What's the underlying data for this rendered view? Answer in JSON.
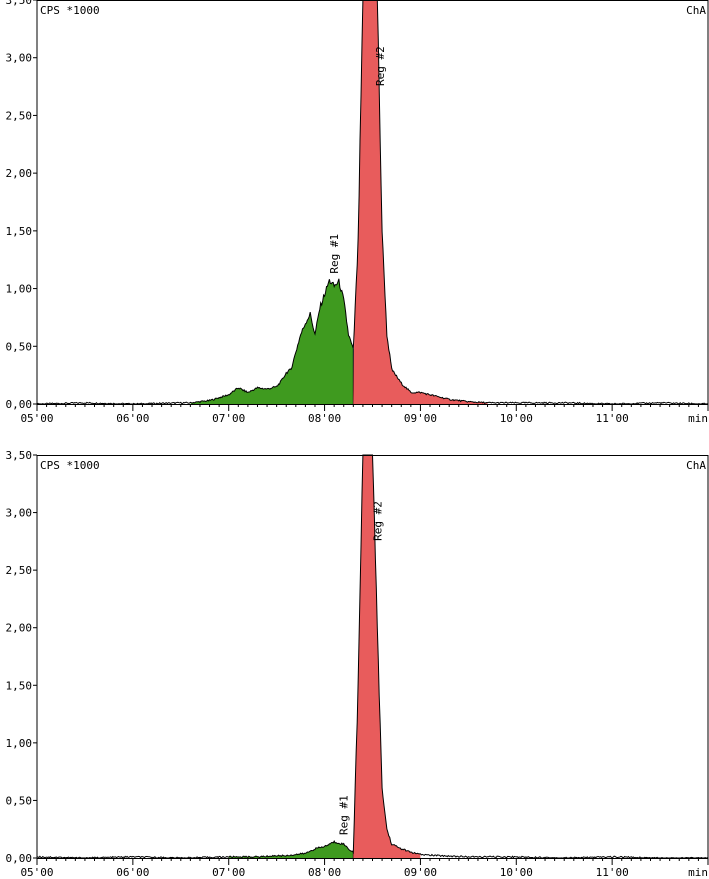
{
  "chart_data": [
    {
      "type": "area",
      "ylabel_corner": "CPS *1000",
      "channel_label": "ChA",
      "x_unit_label": "min",
      "x_range": [
        5.0,
        12.0
      ],
      "y_range": [
        0.0,
        3.5
      ],
      "x_tick_labels": [
        "05'00",
        "06'00",
        "07'00",
        "08'00",
        "09'00",
        "10'00",
        "11'00"
      ],
      "y_tick_labels": [
        "0,00",
        "0,50",
        "1,00",
        "1,50",
        "2,00",
        "2,50",
        "3,00",
        "3,50"
      ],
      "regions": [
        {
          "name": "Reg #1",
          "color": "#3f9a1f",
          "x_start": 6.6,
          "x_end": 8.3
        },
        {
          "name": "Reg #2",
          "color": "#e85c5c",
          "x_start": 8.3,
          "x_end": 9.7
        }
      ],
      "peak_labels": [
        {
          "text": "Reg #1",
          "x": 8.1,
          "y": 1.13
        },
        {
          "text": "Reg #2",
          "x": 8.58,
          "y": 3.1
        }
      ],
      "trace": [
        [
          5.0,
          0.0
        ],
        [
          5.5,
          0.01
        ],
        [
          6.0,
          0.0
        ],
        [
          6.5,
          0.01
        ],
        [
          6.6,
          0.01
        ],
        [
          6.8,
          0.03
        ],
        [
          7.0,
          0.08
        ],
        [
          7.1,
          0.14
        ],
        [
          7.2,
          0.1
        ],
        [
          7.3,
          0.14
        ],
        [
          7.4,
          0.13
        ],
        [
          7.5,
          0.15
        ],
        [
          7.55,
          0.2
        ],
        [
          7.6,
          0.27
        ],
        [
          7.65,
          0.3
        ],
        [
          7.7,
          0.45
        ],
        [
          7.75,
          0.6
        ],
        [
          7.8,
          0.7
        ],
        [
          7.85,
          0.78
        ],
        [
          7.9,
          0.6
        ],
        [
          7.95,
          0.83
        ],
        [
          8.0,
          0.95
        ],
        [
          8.05,
          1.07
        ],
        [
          8.1,
          1.02
        ],
        [
          8.15,
          1.06
        ],
        [
          8.2,
          0.9
        ],
        [
          8.25,
          0.6
        ],
        [
          8.3,
          0.47
        ],
        [
          8.35,
          1.4
        ],
        [
          8.4,
          3.5
        ],
        [
          8.45,
          3.5
        ],
        [
          8.5,
          3.5
        ],
        [
          8.55,
          3.5
        ],
        [
          8.6,
          1.5
        ],
        [
          8.65,
          0.6
        ],
        [
          8.7,
          0.3
        ],
        [
          8.8,
          0.18
        ],
        [
          8.9,
          0.1
        ],
        [
          9.0,
          0.1
        ],
        [
          9.1,
          0.08
        ],
        [
          9.3,
          0.04
        ],
        [
          9.5,
          0.02
        ],
        [
          9.7,
          0.01
        ],
        [
          10.0,
          0.01
        ],
        [
          10.5,
          0.01
        ],
        [
          11.0,
          0.0
        ],
        [
          11.5,
          0.01
        ],
        [
          12.0,
          0.0
        ]
      ]
    },
    {
      "type": "area",
      "ylabel_corner": "CPS *1000",
      "channel_label": "ChA",
      "x_unit_label": "min",
      "x_range": [
        5.0,
        12.0
      ],
      "y_range": [
        0.0,
        3.5
      ],
      "x_tick_labels": [
        "05'00",
        "06'00",
        "07'00",
        "08'00",
        "09'00",
        "10'00",
        "11'00"
      ],
      "y_tick_labels": [
        "0,00",
        "0,50",
        "1,00",
        "1,50",
        "2,00",
        "2,50",
        "3,00",
        "3,50"
      ],
      "regions": [
        {
          "name": "Reg #1",
          "color": "#3f9a1f",
          "x_start": 7.0,
          "x_end": 8.3
        },
        {
          "name": "Reg #2",
          "color": "#e85c5c",
          "x_start": 8.3,
          "x_end": 9.0
        }
      ],
      "peak_labels": [
        {
          "text": "Reg #1",
          "x": 8.2,
          "y": 0.2
        },
        {
          "text": "Reg #2",
          "x": 8.55,
          "y": 3.1
        }
      ],
      "trace": [
        [
          5.0,
          0.01
        ],
        [
          5.5,
          0.0
        ],
        [
          6.0,
          0.01
        ],
        [
          6.5,
          0.0
        ],
        [
          7.0,
          0.01
        ],
        [
          7.3,
          0.01
        ],
        [
          7.5,
          0.02
        ],
        [
          7.6,
          0.02
        ],
        [
          7.8,
          0.04
        ],
        [
          7.9,
          0.08
        ],
        [
          8.0,
          0.1
        ],
        [
          8.1,
          0.14
        ],
        [
          8.2,
          0.12
        ],
        [
          8.25,
          0.08
        ],
        [
          8.3,
          0.05
        ],
        [
          8.35,
          1.5
        ],
        [
          8.4,
          3.5
        ],
        [
          8.45,
          3.5
        ],
        [
          8.5,
          3.5
        ],
        [
          8.55,
          2.0
        ],
        [
          8.6,
          0.6
        ],
        [
          8.65,
          0.25
        ],
        [
          8.7,
          0.12
        ],
        [
          8.8,
          0.08
        ],
        [
          8.9,
          0.05
        ],
        [
          9.0,
          0.03
        ],
        [
          9.2,
          0.02
        ],
        [
          9.5,
          0.01
        ],
        [
          10.0,
          0.01
        ],
        [
          10.5,
          0.0
        ],
        [
          11.0,
          0.01
        ],
        [
          11.5,
          0.0
        ],
        [
          12.0,
          0.0
        ]
      ]
    }
  ]
}
